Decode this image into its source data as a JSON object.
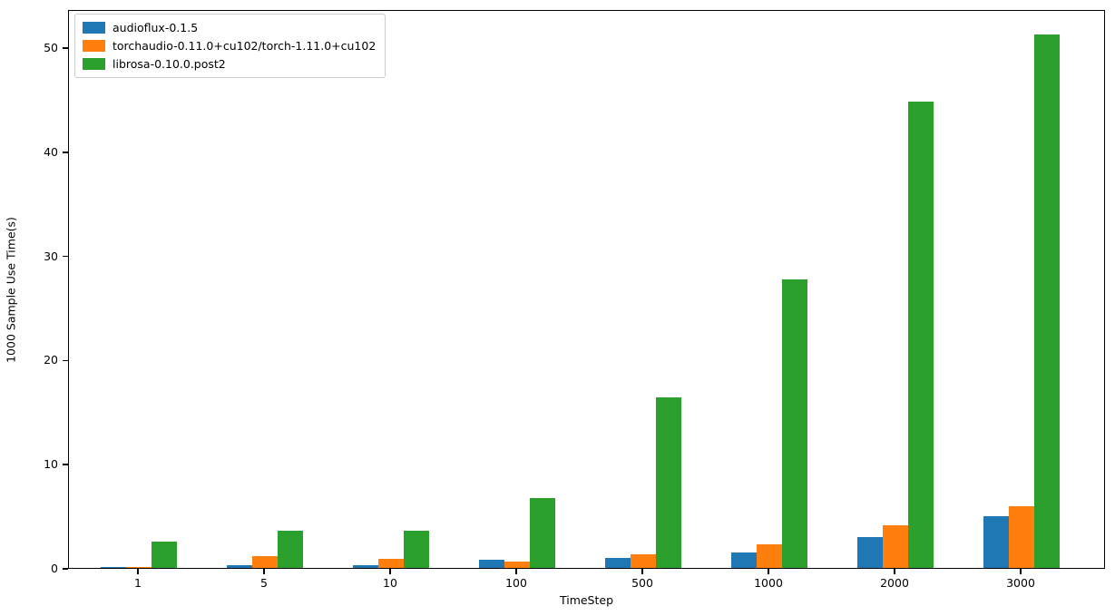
{
  "chart_data": {
    "type": "bar",
    "title": "",
    "xlabel": "TimeStep",
    "ylabel": "1000 Sample Use Time(s)",
    "categories": [
      "1",
      "5",
      "10",
      "100",
      "500",
      "1000",
      "2000",
      "3000"
    ],
    "series": [
      {
        "name": "audioflux-0.1.5",
        "color": "#1f77b4",
        "values": [
          0.12,
          0.3,
          0.25,
          0.75,
          1.0,
          1.5,
          3.0,
          4.95
        ]
      },
      {
        "name": "torchaudio-0.11.0+cu102/torch-1.11.0+cu102",
        "color": "#ff7f0e",
        "values": [
          0.08,
          1.1,
          0.9,
          0.6,
          1.3,
          2.25,
          4.1,
          5.9
        ]
      },
      {
        "name": "librosa-0.10.0.post2",
        "color": "#2ca02c",
        "values": [
          2.5,
          3.6,
          3.55,
          6.7,
          16.4,
          27.7,
          44.8,
          51.2
        ]
      }
    ],
    "yticks": [
      0,
      10,
      20,
      30,
      40,
      50
    ],
    "ylim": [
      0,
      53.66
    ],
    "legend_position": "upper-left",
    "grid": false
  }
}
